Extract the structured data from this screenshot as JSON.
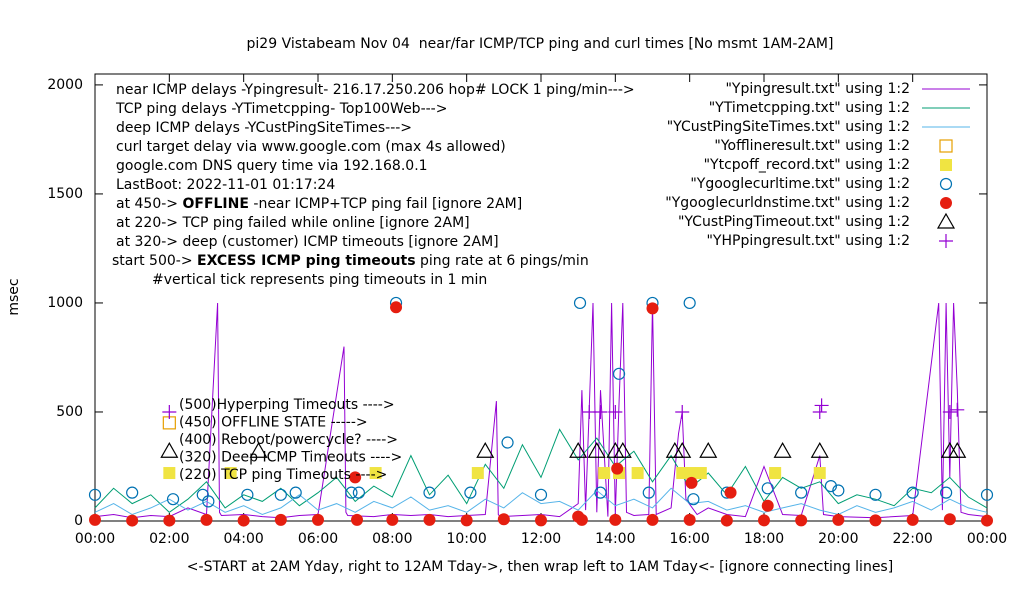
{
  "chart_data": {
    "type": "line",
    "title": "pi29 Vistabeam Nov 04  near/far ICMP/TCP ping and curl times [No msmt 1AM-2AM]",
    "x_label": "<-START at 2AM Yday, right to 12AM Tday->, then wrap left to 1AM Tday<- [ignore connecting lines]",
    "y_label": "msec",
    "xlim": [
      0,
      24
    ],
    "ylim": [
      0,
      2050
    ],
    "xticks": [
      {
        "value": 0,
        "label": "00:00"
      },
      {
        "value": 2,
        "label": "02:00"
      },
      {
        "value": 4,
        "label": "04:00"
      },
      {
        "value": 6,
        "label": "06:00"
      },
      {
        "value": 8,
        "label": "08:00"
      },
      {
        "value": 10,
        "label": "10:00"
      },
      {
        "value": 12,
        "label": "12:00"
      },
      {
        "value": 14,
        "label": "14:00"
      },
      {
        "value": 16,
        "label": "16:00"
      },
      {
        "value": 18,
        "label": "18:00"
      },
      {
        "value": 20,
        "label": "20:00"
      },
      {
        "value": 22,
        "label": "22:00"
      },
      {
        "value": 24,
        "label": "00:00"
      }
    ],
    "yticks": [
      0,
      500,
      1000,
      1500,
      2000
    ],
    "annotations": [
      "near ICMP delays -Ypingresult- 216.17.250.206 hop# LOCK 1 ping/min--->",
      "TCP ping delays -YTimetcpping- Top100Web--->",
      "deep ICMP delays -YCustPingSiteTimes--->",
      "curl target delay via www.google.com (max 4s allowed)",
      "google.com DNS query time via 192.168.0.1",
      "LastBoot: 2022-11-01 01:17:24",
      {
        "parts": [
          "at 450-> ",
          "OFFLINE",
          " -near ICMP+TCP ping fail [ignore 2AM]"
        ]
      },
      "at 220-> TCP ping failed while online [ignore 2AM]",
      "at 320-> deep (customer) ICMP timeouts [ignore 2AM]",
      {
        "parts": [
          "start 500-> ",
          "EXCESS ICMP ping timeouts",
          " ping rate at 6 pings/min"
        ]
      },
      "#vertical tick represents ping timeouts in 1 min"
    ],
    "inner_key": [
      "(500)Hyperping Timeouts ---->",
      "(450) OFFLINE STATE ----->",
      "(400) Reboot/powercycle? ---->",
      "(320) Deep ICMP Timeouts ---->",
      "(220) TCP ping Timeouts ---->"
    ],
    "series": [
      {
        "name": "\"Ypingresult.txt\" using 1:2",
        "color": "#9400d3",
        "style": "line",
        "x": [
          0,
          0.5,
          1,
          1.5,
          2,
          2.5,
          3,
          3.3,
          3.35,
          3.4,
          4,
          4.5,
          5,
          5.5,
          6,
          6.7,
          6.75,
          6.8,
          7.5,
          8,
          8.5,
          9,
          9.5,
          10,
          10.5,
          10.8,
          10.85,
          10.9,
          11.5,
          12,
          12.5,
          13,
          13.1,
          13.2,
          13.4,
          13.5,
          13.6,
          13.8,
          13.9,
          14,
          14.1,
          14.2,
          14.3,
          14.5,
          14.9,
          15,
          15.1,
          15.5,
          15.7,
          15.8,
          15.9,
          16.2,
          16.5,
          17,
          17.5,
          18,
          18.5,
          19,
          19.5,
          19.6,
          20,
          21,
          22,
          22.7,
          22.8,
          22.9,
          23,
          23.1,
          23.2,
          23.3,
          23.5,
          24
        ],
        "values": [
          20,
          30,
          15,
          25,
          20,
          60,
          30,
          1000,
          40,
          25,
          30,
          20,
          15,
          25,
          30,
          800,
          40,
          25,
          20,
          30,
          25,
          30,
          20,
          25,
          30,
          550,
          30,
          20,
          25,
          30,
          20,
          80,
          600,
          50,
          1000,
          40,
          600,
          20,
          1000,
          30,
          550,
          1000,
          40,
          25,
          30,
          1000,
          30,
          60,
          400,
          500,
          100,
          30,
          60,
          30,
          20,
          250,
          30,
          25,
          300,
          30,
          20,
          15,
          25,
          1000,
          50,
          1000,
          200,
          1000,
          600,
          40,
          30,
          20
        ]
      },
      {
        "name": "\"YTimetcpping.txt\" using 1:2",
        "color": "#009e73",
        "style": "line",
        "x": [
          0,
          0.5,
          1,
          1.5,
          2,
          2.5,
          3,
          3.5,
          4,
          4.5,
          5,
          5.5,
          6,
          6.5,
          7,
          7.5,
          8,
          8.5,
          9,
          9.5,
          10,
          10.5,
          11,
          11.5,
          12,
          12.5,
          13,
          13.5,
          14,
          14.5,
          15,
          15.5,
          16,
          16.5,
          17,
          17.5,
          18,
          18.5,
          19,
          19.5,
          20,
          20.5,
          21,
          21.5,
          22,
          22.5,
          23,
          23.5,
          24
        ],
        "values": [
          60,
          150,
          80,
          120,
          40,
          100,
          180,
          60,
          120,
          90,
          150,
          70,
          130,
          200,
          90,
          160,
          110,
          300,
          120,
          210,
          80,
          260,
          150,
          350,
          200,
          420,
          280,
          380,
          250,
          320,
          180,
          300,
          150,
          220,
          120,
          250,
          90,
          200,
          150,
          180,
          80,
          120,
          100,
          70,
          150,
          130,
          200,
          110,
          60
        ]
      },
      {
        "name": "\"YCustPingSiteTimes.txt\" using 1:2",
        "color": "#56b4e9",
        "style": "line",
        "x": [
          0,
          0.5,
          1,
          1.5,
          2,
          2.5,
          3,
          3.5,
          4,
          4.5,
          5,
          5.5,
          6,
          6.5,
          7,
          7.5,
          8,
          8.5,
          9,
          9.5,
          10,
          10.5,
          11,
          11.5,
          12,
          12.5,
          13,
          13.5,
          14,
          14.5,
          15,
          15.5,
          16,
          16.5,
          17,
          17.5,
          18,
          18.5,
          19,
          19.5,
          20,
          20.5,
          21,
          21.5,
          22,
          22.5,
          23,
          23.5,
          24
        ],
        "values": [
          40,
          80,
          30,
          60,
          100,
          50,
          90,
          40,
          70,
          30,
          60,
          120,
          50,
          80,
          40,
          90,
          60,
          110,
          50,
          70,
          40,
          100,
          60,
          130,
          80,
          90,
          50,
          140,
          70,
          100,
          60,
          150,
          80,
          90,
          50,
          70,
          40,
          60,
          80,
          50,
          30,
          70,
          40,
          60,
          90,
          50,
          100,
          60,
          40
        ]
      },
      {
        "name": "\"Yofflineresult.txt\" using 1:2",
        "color": "#e69f00",
        "style": "open-square",
        "x": [
          2
        ],
        "values": [
          450
        ]
      },
      {
        "name": "\"Ytcpoff_record.txt\" using 1:2",
        "color": "#f0e442",
        "style": "filled-square",
        "x": [
          2,
          3.65,
          7.55,
          10.3,
          13.7,
          14.1,
          14.6,
          15.8,
          16.0,
          16.3,
          18.3,
          19.5
        ],
        "values": [
          220,
          220,
          220,
          220,
          220,
          220,
          220,
          220,
          220,
          220,
          220,
          220
        ]
      },
      {
        "name": "\"Ygooglecurltime.txt\" using 1:2",
        "color": "#0072b2",
        "style": "open-circle",
        "x": [
          0,
          1,
          2.1,
          2.9,
          3.05,
          4.1,
          5,
          5.4,
          6.9,
          7.1,
          8.1,
          9,
          10.1,
          11.1,
          12,
          13.05,
          13.6,
          14.1,
          14.9,
          15.0,
          16.0,
          16.1,
          17.0,
          18.1,
          19.0,
          19.8,
          20.0,
          21.0,
          22.0,
          22.9,
          24
        ],
        "values": [
          120,
          130,
          100,
          120,
          90,
          120,
          120,
          130,
          130,
          130,
          1000,
          130,
          130,
          360,
          120,
          1000,
          130,
          675,
          130,
          1000,
          1000,
          100,
          130,
          150,
          130,
          160,
          140,
          120,
          130,
          130,
          120
        ]
      },
      {
        "name": "\"Ygooglecurldnstime.txt\" using 1:2",
        "color": "#e51e10",
        "style": "filled-circle",
        "x": [
          0,
          1,
          2,
          3,
          4,
          5,
          6,
          7.0,
          7.05,
          8,
          8.1,
          9,
          10,
          11,
          12,
          13,
          13.1,
          14,
          14.05,
          15,
          15,
          16,
          16.05,
          17,
          17.1,
          18,
          18.1,
          19,
          20,
          21,
          22,
          23,
          24
        ],
        "values": [
          5,
          2,
          2,
          5,
          2,
          5,
          5,
          200,
          5,
          5,
          980,
          5,
          3,
          8,
          3,
          20,
          5,
          5,
          240,
          975,
          5,
          5,
          175,
          2,
          130,
          3,
          70,
          3,
          5,
          3,
          5,
          8,
          2
        ]
      },
      {
        "name": "\"YCustPingTimeout.txt\" using 1:2",
        "color": "#000000",
        "style": "open-triangle",
        "x": [
          2,
          4.4,
          10.5,
          13.0,
          13.5,
          14.0,
          14.2,
          15.6,
          15.8,
          16.5,
          18.5,
          19.5,
          23.0,
          23.2
        ],
        "values": [
          320,
          320,
          320,
          320,
          320,
          320,
          320,
          320,
          320,
          320,
          320,
          320,
          320,
          320
        ]
      },
      {
        "name": "\"YHPpingresult.txt\" using 1:2",
        "color": "#9400d3",
        "style": "plus",
        "x": [
          2,
          13.3,
          13.6,
          14.0,
          15.8,
          19.5,
          19.55,
          23.0,
          23.2
        ],
        "values": [
          500,
          500,
          500,
          500,
          500,
          500,
          530,
          500,
          510
        ]
      }
    ]
  }
}
